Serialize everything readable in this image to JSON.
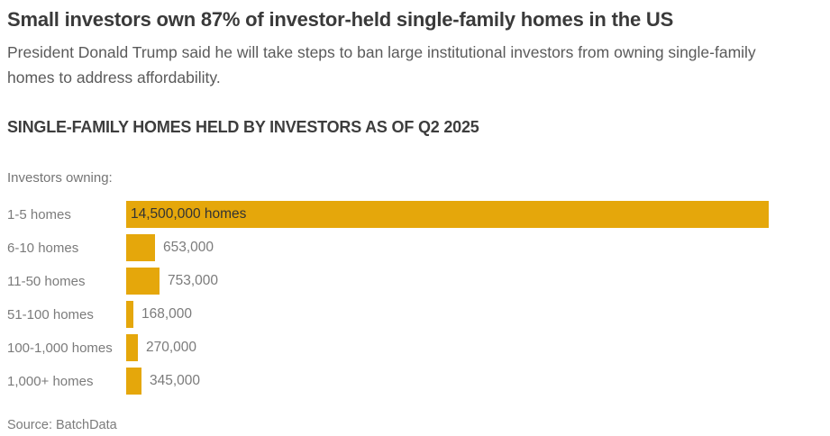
{
  "page": {
    "title": "Small investors own 87% of investor-held single-family homes in the US",
    "subtitle": "President Donald Trump said he will take steps to ban large institutional investors from owning single-family homes to address affordability.",
    "source": "Source: BatchData"
  },
  "colors": {
    "bar": "#e5a70b",
    "title_text": "#3a3a3a",
    "subtitle_text": "#5a5a5a",
    "category_text": "#7b7b7b",
    "inside_bar_text": "#333333"
  },
  "chart_data": {
    "type": "bar",
    "orientation": "horizontal",
    "title": "SINGLE-FAMILY HOMES HELD BY INVESTORS AS OF Q2 2025",
    "axis_intro": "Investors owning:",
    "categories": [
      "1-5 homes",
      "6-10 homes",
      "11-50 homes",
      "51-100 homes",
      "100-1,000 homes",
      "1,000+ homes"
    ],
    "values": [
      14500000,
      653000,
      753000,
      168000,
      270000,
      345000
    ],
    "value_labels": [
      "14,500,000 homes",
      "653,000",
      "753,000",
      "168,000",
      "270,000",
      "345,000"
    ],
    "value_label_positions": [
      "inside",
      "outside",
      "outside",
      "outside",
      "outside",
      "outside"
    ],
    "xlim": [
      0,
      14500000
    ],
    "grid": false,
    "legend": null,
    "source": "Source: BatchData"
  }
}
